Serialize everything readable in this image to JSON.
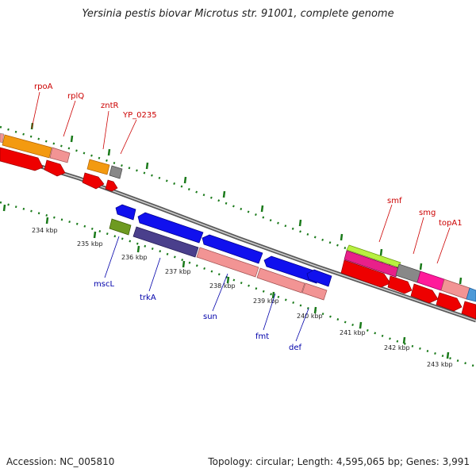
{
  "title": "Yersinia pestis biovar Microtus str. 91001, complete genome",
  "footer": {
    "accession": "Accession: NC_005810",
    "summary": "Topology: circular; Length: 4,595,065 bp; Genes: 3,991"
  },
  "colors": {
    "forward_label": "#cc0000",
    "reverse_label": "#0000aa",
    "backbone": "#777777",
    "tick": "#1a7a1a",
    "cds": "#ee0000",
    "reverse_cds": "#1010ee"
  },
  "forward_gene_labels": [
    "rpoA",
    "rplQ",
    "zntR",
    "YP_0235",
    "smf",
    "smg",
    "topA1"
  ],
  "reverse_gene_labels": [
    "mscL",
    "trkA",
    "sun",
    "fmt",
    "def"
  ],
  "kbp_ticks": [
    "234 kbp",
    "235 kbp",
    "236 kbp",
    "237 kbp",
    "238 kbp",
    "239 kbp",
    "240 kbp",
    "241 kbp",
    "242 kbp",
    "243 kbp"
  ]
}
